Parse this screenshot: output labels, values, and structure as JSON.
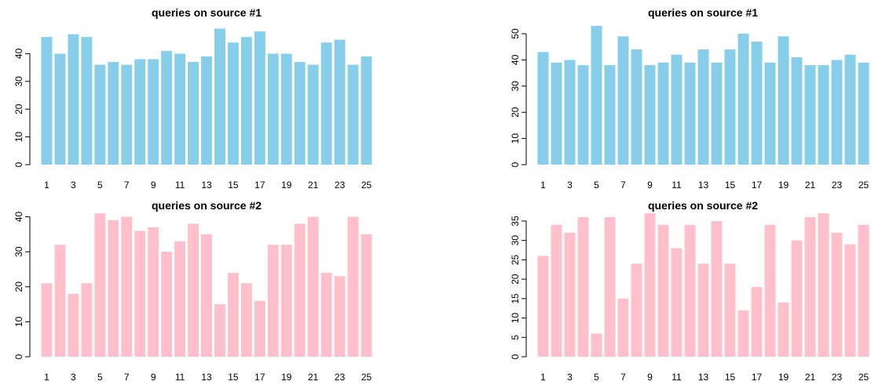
{
  "colors": {
    "blue_bar": "#87CEEB",
    "pink_bar": "#FFC0CB",
    "axis": "#000000"
  },
  "chart_data": [
    {
      "type": "bar",
      "title": "queries on source #1",
      "categories": [
        "1",
        "2",
        "3",
        "4",
        "5",
        "6",
        "7",
        "8",
        "9",
        "10",
        "11",
        "12",
        "13",
        "14",
        "15",
        "16",
        "17",
        "18",
        "19",
        "20",
        "21",
        "22",
        "23",
        "24",
        "25"
      ],
      "x_tick_labels": [
        "1",
        "3",
        "5",
        "7",
        "9",
        "11",
        "13",
        "15",
        "17",
        "19",
        "21",
        "23",
        "25"
      ],
      "values": [
        46,
        40,
        47,
        46,
        36,
        37,
        36,
        38,
        38,
        41,
        40,
        37,
        39,
        49,
        44,
        46,
        48,
        40,
        40,
        37,
        36,
        44,
        45,
        36,
        39
      ],
      "ylim": [
        0,
        50
      ],
      "y_ticks": [
        0,
        10,
        20,
        30,
        40
      ],
      "bar_color": "#87CEEB",
      "xlabel": "",
      "ylabel": ""
    },
    {
      "type": "bar",
      "title": "queries on source #1",
      "categories": [
        "1",
        "2",
        "3",
        "4",
        "5",
        "6",
        "7",
        "8",
        "9",
        "10",
        "11",
        "12",
        "13",
        "14",
        "15",
        "16",
        "17",
        "18",
        "19",
        "20",
        "21",
        "22",
        "23",
        "24",
        "25"
      ],
      "x_tick_labels": [
        "1",
        "3",
        "5",
        "7",
        "9",
        "11",
        "13",
        "15",
        "17",
        "19",
        "21",
        "23",
        "25"
      ],
      "values": [
        43,
        39,
        40,
        38,
        53,
        38,
        49,
        44,
        38,
        39,
        42,
        39,
        44,
        39,
        44,
        50,
        47,
        39,
        49,
        41,
        38,
        38,
        40,
        42,
        39
      ],
      "ylim": [
        0,
        53
      ],
      "y_ticks": [
        0,
        10,
        20,
        30,
        40,
        50
      ],
      "bar_color": "#87CEEB",
      "xlabel": "",
      "ylabel": ""
    },
    {
      "type": "bar",
      "title": "queries on source #2",
      "categories": [
        "1",
        "2",
        "3",
        "4",
        "5",
        "6",
        "7",
        "8",
        "9",
        "10",
        "11",
        "12",
        "13",
        "14",
        "15",
        "16",
        "17",
        "18",
        "19",
        "20",
        "21",
        "22",
        "23",
        "24",
        "25"
      ],
      "x_tick_labels": [
        "1",
        "3",
        "5",
        "7",
        "9",
        "11",
        "13",
        "15",
        "17",
        "19",
        "21",
        "23",
        "25"
      ],
      "values": [
        21,
        32,
        18,
        21,
        41,
        39,
        40,
        36,
        37,
        30,
        33,
        38,
        35,
        15,
        24,
        21,
        16,
        32,
        32,
        38,
        40,
        24,
        23,
        40,
        35
      ],
      "ylim": [
        0,
        41
      ],
      "y_ticks": [
        0,
        10,
        20,
        30,
        40
      ],
      "bar_color": "#FFC0CB",
      "xlabel": "",
      "ylabel": ""
    },
    {
      "type": "bar",
      "title": "queries on source #2",
      "categories": [
        "1",
        "2",
        "3",
        "4",
        "5",
        "6",
        "7",
        "8",
        "9",
        "10",
        "11",
        "12",
        "13",
        "14",
        "15",
        "16",
        "17",
        "18",
        "19",
        "20",
        "21",
        "22",
        "23",
        "24",
        "25"
      ],
      "x_tick_labels": [
        "1",
        "3",
        "5",
        "7",
        "9",
        "11",
        "13",
        "15",
        "17",
        "19",
        "21",
        "23",
        "25"
      ],
      "values": [
        26,
        34,
        32,
        36,
        6,
        36,
        15,
        24,
        37,
        34,
        28,
        34,
        24,
        35,
        24,
        12,
        18,
        34,
        14,
        30,
        36,
        37,
        32,
        29,
        34
      ],
      "ylim": [
        0,
        37
      ],
      "y_ticks": [
        0,
        5,
        10,
        15,
        20,
        25,
        30,
        35
      ],
      "bar_color": "#FFC0CB",
      "xlabel": "",
      "ylabel": ""
    }
  ]
}
